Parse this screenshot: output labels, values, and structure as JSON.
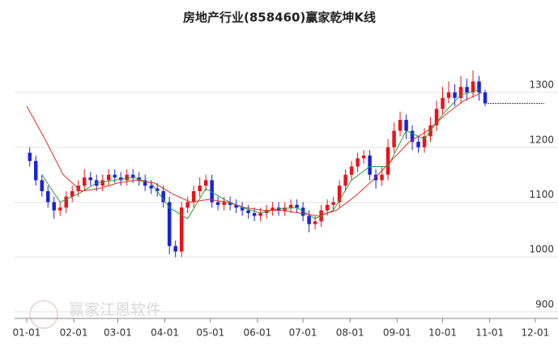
{
  "chart_data": {
    "type": "candlestick",
    "title": "房地产行业(858460)赢家乾坤K线",
    "watermark": "赢家江恩软件",
    "up_color": "#e8141a",
    "down_color": "#1a23d6",
    "x": [
      2,
      6,
      10,
      14,
      18,
      22,
      26,
      30,
      34,
      38,
      42,
      46,
      50,
      54,
      58,
      62,
      66,
      70,
      74,
      78,
      82,
      86,
      90,
      94,
      98,
      102,
      106,
      110,
      114,
      118,
      122,
      126,
      130,
      134,
      138,
      142,
      146,
      150,
      154,
      158,
      162,
      166,
      170,
      174,
      178,
      182,
      186,
      190,
      194,
      198,
      202,
      206,
      210,
      214,
      218,
      222,
      226,
      230,
      234,
      238,
      242,
      246,
      250,
      254,
      258,
      262,
      266,
      270,
      274,
      278,
      282,
      286,
      290,
      294,
      298,
      302
    ],
    "open": [
      1190,
      1175,
      1140,
      1120,
      1100,
      1085,
      1090,
      1110,
      1120,
      1130,
      1145,
      1140,
      1130,
      1140,
      1150,
      1145,
      1140,
      1150,
      1145,
      1140,
      1130,
      1125,
      1120,
      1100,
      1020,
      1010,
      1090,
      1100,
      1120,
      1130,
      1140,
      1100,
      1095,
      1100,
      1095,
      1090,
      1085,
      1080,
      1075,
      1080,
      1085,
      1090,
      1085,
      1090,
      1095,
      1090,
      1075,
      1060,
      1065,
      1085,
      1095,
      1100,
      1130,
      1150,
      1165,
      1180,
      1185,
      1150,
      1140,
      1150,
      1200,
      1230,
      1250,
      1230,
      1210,
      1200,
      1220,
      1240,
      1270,
      1290,
      1300,
      1290,
      1310,
      1300,
      1320,
      1300
    ],
    "high": [
      1200,
      1185,
      1150,
      1130,
      1110,
      1100,
      1120,
      1130,
      1140,
      1160,
      1155,
      1150,
      1150,
      1160,
      1160,
      1155,
      1160,
      1160,
      1155,
      1150,
      1140,
      1135,
      1130,
      1110,
      1030,
      1100,
      1110,
      1130,
      1145,
      1150,
      1150,
      1110,
      1110,
      1110,
      1105,
      1100,
      1095,
      1090,
      1090,
      1095,
      1100,
      1100,
      1100,
      1105,
      1105,
      1100,
      1085,
      1075,
      1095,
      1105,
      1110,
      1140,
      1160,
      1175,
      1190,
      1195,
      1195,
      1160,
      1165,
      1215,
      1245,
      1265,
      1260,
      1240,
      1220,
      1235,
      1255,
      1285,
      1310,
      1320,
      1315,
      1330,
      1325,
      1340,
      1330,
      1305
    ],
    "low": [
      1165,
      1130,
      1110,
      1090,
      1070,
      1075,
      1080,
      1100,
      1110,
      1120,
      1130,
      1120,
      1120,
      1130,
      1135,
      1130,
      1130,
      1135,
      1130,
      1120,
      1115,
      1110,
      1090,
      1005,
      1000,
      1000,
      1080,
      1090,
      1110,
      1120,
      1090,
      1085,
      1085,
      1085,
      1080,
      1075,
      1070,
      1065,
      1065,
      1070,
      1075,
      1075,
      1075,
      1080,
      1080,
      1065,
      1045,
      1050,
      1055,
      1075,
      1085,
      1090,
      1120,
      1140,
      1155,
      1170,
      1140,
      1125,
      1130,
      1140,
      1190,
      1220,
      1215,
      1195,
      1190,
      1190,
      1210,
      1230,
      1260,
      1280,
      1275,
      1280,
      1285,
      1290,
      1285,
      1275
    ],
    "close": [
      1175,
      1140,
      1120,
      1100,
      1085,
      1090,
      1110,
      1120,
      1130,
      1145,
      1140,
      1130,
      1140,
      1150,
      1145,
      1140,
      1150,
      1145,
      1140,
      1130,
      1125,
      1120,
      1100,
      1020,
      1010,
      1090,
      1100,
      1120,
      1130,
      1140,
      1100,
      1095,
      1100,
      1095,
      1090,
      1085,
      1080,
      1075,
      1080,
      1085,
      1090,
      1085,
      1090,
      1095,
      1090,
      1075,
      1060,
      1065,
      1085,
      1095,
      1100,
      1130,
      1150,
      1165,
      1180,
      1185,
      1150,
      1140,
      1150,
      1200,
      1230,
      1250,
      1230,
      1210,
      1200,
      1220,
      1240,
      1270,
      1290,
      1300,
      1290,
      1310,
      1300,
      1320,
      1300,
      1280
    ],
    "ma_lines": [
      {
        "color": "#2e9b3a",
        "x": [
          10,
          22,
          34,
          46,
          58,
          70,
          82,
          94,
          106,
          118,
          130,
          142,
          154,
          166,
          178,
          190,
          202,
          214,
          226,
          238,
          250,
          262,
          274,
          286,
          298
        ],
        "values": [
          1150,
          1100,
          1115,
          1135,
          1140,
          1145,
          1135,
          1090,
          1070,
          1125,
          1105,
          1090,
          1080,
          1088,
          1090,
          1070,
          1085,
          1140,
          1165,
          1165,
          1230,
          1215,
          1260,
          1295,
          1305
        ]
      },
      {
        "color": "#e0302a",
        "x": [
          0,
          12,
          24,
          36,
          48,
          60,
          72,
          84,
          96,
          108,
          120,
          132,
          144,
          156,
          168,
          180,
          192,
          204,
          216,
          228,
          240,
          252,
          264,
          276,
          288,
          300
        ],
        "values": [
          1275,
          1215,
          1150,
          1120,
          1125,
          1135,
          1140,
          1135,
          1115,
          1100,
          1105,
          1100,
          1090,
          1085,
          1085,
          1080,
          1075,
          1085,
          1110,
          1140,
          1175,
          1210,
          1230,
          1260,
          1285,
          1300
        ]
      }
    ],
    "xlim": [
      -8,
      350
    ],
    "xticks": [
      {
        "value": 0,
        "label": "01-01"
      },
      {
        "value": 31,
        "label": "02-01"
      },
      {
        "value": 60,
        "label": "03-01"
      },
      {
        "value": 91,
        "label": "04-01"
      },
      {
        "value": 121,
        "label": "05-01"
      },
      {
        "value": 152,
        "label": "06-01"
      },
      {
        "value": 182,
        "label": "07-01"
      },
      {
        "value": 213,
        "label": "08-01"
      },
      {
        "value": 244,
        "label": "09-01"
      },
      {
        "value": 274,
        "label": "10-01"
      },
      {
        "value": 305,
        "label": "11-01"
      },
      {
        "value": 335,
        "label": "12-01"
      }
    ],
    "ylim": [
      888,
      1402
    ],
    "yticks": [
      900,
      1000,
      1100,
      1200,
      1300
    ],
    "grid": true
  }
}
